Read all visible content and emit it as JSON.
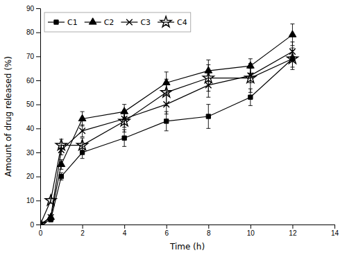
{
  "chart_data": {
    "type": "line",
    "xlabel": "Time (h)",
    "ylabel": "Amount of drug released (%)",
    "x": [
      0,
      0.5,
      1,
      2,
      4,
      6,
      8,
      10,
      12
    ],
    "series": [
      {
        "name": "C1",
        "color": "#000000",
        "marker": "square",
        "values": [
          0,
          2,
          20,
          30,
          36,
          43,
          45,
          53,
          69
        ],
        "errors": [
          0,
          0.5,
          1.5,
          2.5,
          3.5,
          4.0,
          5.0,
          3.5,
          3.5
        ]
      },
      {
        "name": "C2",
        "color": "#000000",
        "marker": "triangle",
        "values": [
          0,
          3,
          25,
          44,
          47,
          59,
          64,
          66,
          79
        ],
        "errors": [
          0,
          0.5,
          2.0,
          3.0,
          3.0,
          4.5,
          4.5,
          3.0,
          4.5
        ]
      },
      {
        "name": "C3",
        "color": "#000000",
        "marker": "x",
        "values": [
          0,
          3,
          31,
          39,
          44,
          50,
          58,
          62,
          72
        ],
        "errors": [
          0,
          0.5,
          2.0,
          2.5,
          3.5,
          4.0,
          5.0,
          3.0,
          4.0
        ]
      },
      {
        "name": "C4",
        "color": "#000000",
        "marker": "star",
        "values": [
          0,
          10,
          33,
          33,
          43,
          55,
          61,
          61,
          69
        ],
        "errors": [
          0,
          1.0,
          2.5,
          3.0,
          4.5,
          5.5,
          5.5,
          6.0,
          4.5
        ]
      }
    ],
    "xlim": [
      0,
      14
    ],
    "ylim": [
      0,
      90
    ],
    "xticks": [
      0,
      2,
      4,
      6,
      8,
      10,
      12,
      14
    ],
    "yticks": [
      0,
      10,
      20,
      30,
      40,
      50,
      60,
      70,
      80,
      90
    ],
    "legend": "upper left",
    "grid": false
  }
}
